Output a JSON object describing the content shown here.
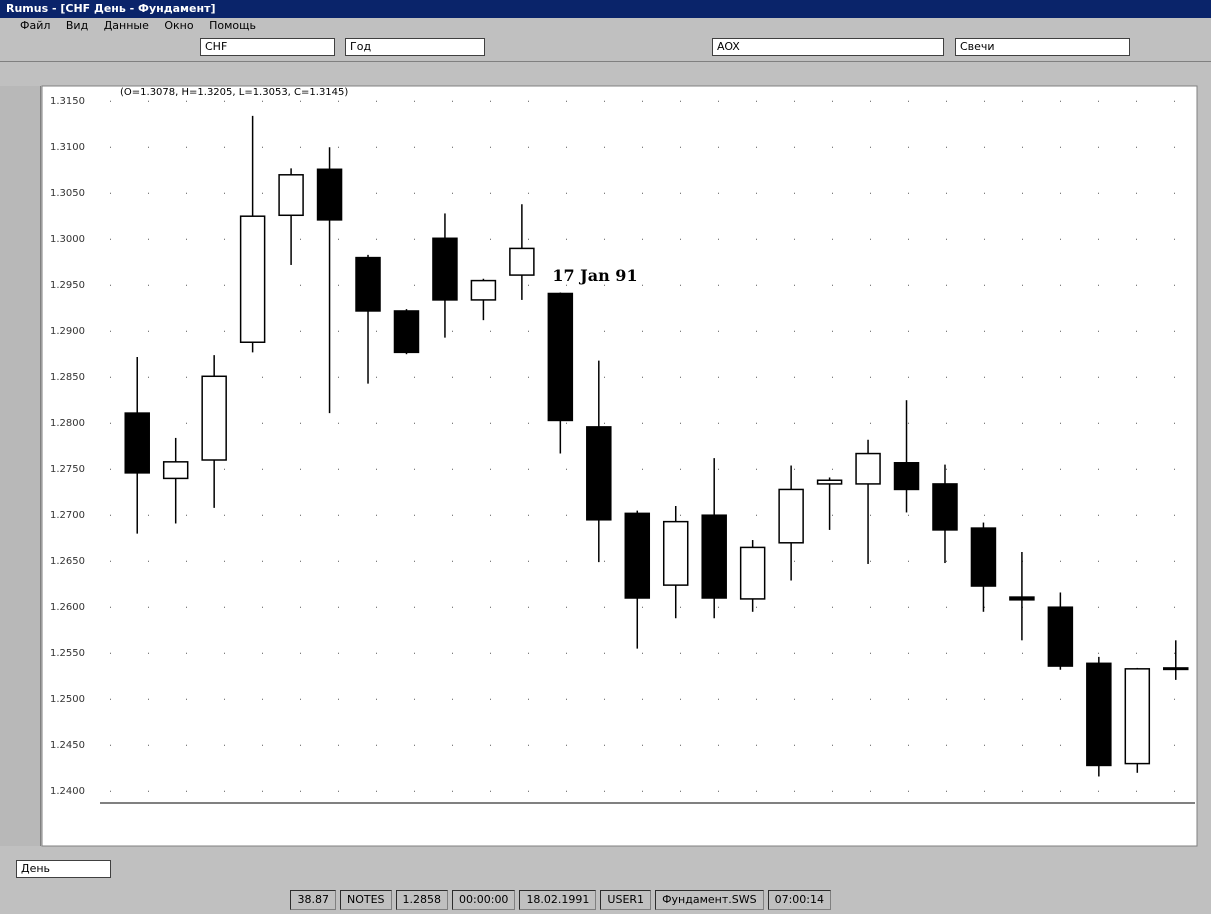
{
  "window": {
    "title": "Rumus - [CHF День - Фундамент]"
  },
  "menu": [
    "Файл",
    "Вид",
    "Данные",
    "Окно",
    "Помощь"
  ],
  "toolbar": {
    "symbol": "CHF",
    "period": "Год",
    "indicator": "AOX",
    "style": "Свечи"
  },
  "bottom_toolbar": {
    "interval": "День"
  },
  "status_bar": [
    "38.87",
    "NOTES",
    "1.2858",
    "00:00:00",
    "18.02.1991",
    "USER1",
    "Фундамент.SWS",
    "07:00:14"
  ],
  "chart_data": {
    "type": "candlestick",
    "subtitle": "(O=1.3078, H=1.3205, L=1.3053, C=1.3145)",
    "annotation": {
      "text": "17 Jan 91",
      "index": 11
    },
    "up_color": "#ffffff",
    "down_color": "#000000",
    "grid": true,
    "ylim": [
      1.2385,
      1.316
    ],
    "yticks": [
      {
        "value": 1.315,
        "label": "1.3150"
      },
      {
        "value": 1.31,
        "label": "1.3100"
      },
      {
        "value": 1.305,
        "label": "1.3050"
      },
      {
        "value": 1.3,
        "label": "1.3000"
      },
      {
        "value": 1.295,
        "label": "1.2950"
      },
      {
        "value": 1.29,
        "label": "1.2900"
      },
      {
        "value": 1.285,
        "label": "1.2850"
      },
      {
        "value": 1.28,
        "label": "1.2800"
      },
      {
        "value": 1.275,
        "label": "1.2750"
      },
      {
        "value": 1.27,
        "label": "1.2700"
      },
      {
        "value": 1.265,
        "label": "1.2650"
      },
      {
        "value": 1.26,
        "label": "1.2600"
      },
      {
        "value": 1.255,
        "label": "1.2550"
      },
      {
        "value": 1.25,
        "label": "1.2500"
      },
      {
        "value": 1.245,
        "label": "1.2450"
      },
      {
        "value": 1.24,
        "label": "1.2400"
      }
    ],
    "categories": [
      null,
      null,
      null,
      null,
      null,
      null,
      null,
      null,
      null,
      null,
      null,
      null,
      null,
      null,
      null,
      null,
      null,
      null,
      null,
      null,
      null,
      null,
      null,
      null,
      null,
      null,
      null,
      null
    ],
    "open": [
      1.2811,
      1.274,
      1.276,
      1.2888,
      1.3026,
      1.3076,
      1.298,
      1.2922,
      1.3001,
      1.2934,
      1.2961,
      1.2941,
      1.2796,
      1.2702,
      1.2624,
      1.27,
      1.2609,
      1.267,
      1.2734,
      1.2734,
      1.2757,
      1.2734,
      1.2686,
      1.2611,
      1.26,
      1.2539,
      1.243,
      1.2534
    ],
    "high": [
      1.2872,
      1.2784,
      1.2874,
      1.3134,
      1.3077,
      1.31,
      1.2983,
      1.2924,
      1.3028,
      1.2957,
      1.3038,
      1.2942,
      1.2868,
      1.2705,
      1.271,
      1.2762,
      1.2673,
      1.2754,
      1.2741,
      1.2782,
      1.2825,
      1.2755,
      1.2692,
      1.266,
      1.2616,
      1.2546,
      1.2534,
      1.2564
    ],
    "low": [
      1.268,
      1.2691,
      1.2708,
      1.2877,
      1.2972,
      1.2811,
      1.2843,
      1.2875,
      1.2893,
      1.2912,
      1.2934,
      1.2767,
      1.2649,
      1.2555,
      1.2588,
      1.2588,
      1.2595,
      1.2629,
      1.2684,
      1.2647,
      1.2703,
      1.2648,
      1.2595,
      1.2564,
      1.2532,
      1.2416,
      1.242,
      1.2521
    ],
    "close": [
      1.2746,
      1.2758,
      1.2851,
      1.3025,
      1.307,
      1.3021,
      1.2922,
      1.2877,
      1.2934,
      1.2955,
      1.299,
      1.2803,
      1.2695,
      1.261,
      1.2693,
      1.261,
      1.2665,
      1.2728,
      1.2738,
      1.2767,
      1.2728,
      1.2684,
      1.2623,
      1.2608,
      1.2536,
      1.2428,
      1.2533,
      1.2534
    ]
  }
}
